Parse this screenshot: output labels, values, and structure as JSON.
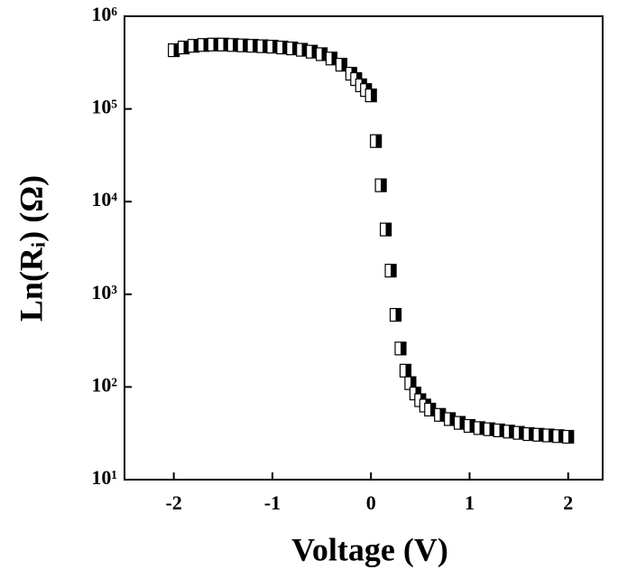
{
  "chart_data": {
    "type": "scatter",
    "x_label": "Voltage (V)",
    "y_label": "Ln(Rᵢ) (Ω)",
    "xlim": [
      -2.5,
      2.35
    ],
    "xticks": [
      -2,
      -1,
      0,
      1,
      2
    ],
    "ylim": [
      10,
      1000000
    ],
    "log_y": true,
    "yticks": [
      {
        "value": 10,
        "label": "10¹"
      },
      {
        "value": 100,
        "label": "10²"
      },
      {
        "value": 1000,
        "label": "10³"
      },
      {
        "value": 10000,
        "label": "10⁴"
      },
      {
        "value": 100000,
        "label": "10⁵"
      },
      {
        "value": 1000000,
        "label": "10⁶"
      }
    ],
    "series": [
      {
        "color": "#000000",
        "x": [
          -2.0,
          -1.9,
          -1.8,
          -1.7,
          -1.6,
          -1.5,
          -1.4,
          -1.3,
          -1.2,
          -1.1,
          -1.0,
          -0.9,
          -0.8,
          -0.7,
          -0.6,
          -0.5,
          -0.4,
          -0.3,
          -0.2,
          -0.15,
          -0.1,
          -0.05,
          0.0,
          0.05,
          0.1,
          0.15,
          0.2,
          0.25,
          0.3,
          0.35,
          0.4,
          0.45,
          0.5,
          0.55,
          0.6,
          0.7,
          0.8,
          0.9,
          1.0,
          1.1,
          1.2,
          1.3,
          1.4,
          1.5,
          1.6,
          1.7,
          1.8,
          1.9,
          2.0
        ],
        "values": [
          430000,
          460000,
          480000,
          490000,
          495000,
          495000,
          490000,
          485000,
          480000,
          475000,
          470000,
          460000,
          450000,
          435000,
          415000,
          390000,
          350000,
          300000,
          240000,
          210000,
          180000,
          160000,
          140000,
          45000,
          15000,
          5000,
          1800,
          600,
          260,
          150,
          110,
          85,
          72,
          63,
          57,
          50,
          45,
          41,
          38,
          36,
          35,
          34,
          33,
          32,
          31,
          30.5,
          30,
          29.5,
          29
        ]
      }
    ]
  }
}
